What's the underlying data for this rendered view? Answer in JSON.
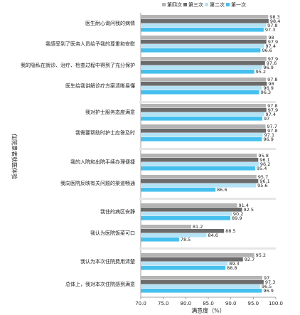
{
  "chart_data": {
    "type": "hbar",
    "ylabel": "住院患者就医体验",
    "xlabel": "满意度（%）",
    "categories": [
      "医生耐心询问我的病情",
      "我感受到了医务人员给予我的尊重和安慰",
      "我的隐私在就诊、治疗、检查过程中得到了充分保护",
      "医生给我讲解诊疗方案清晰易懂",
      "我对护士服务态度满意",
      "我需要帮助时护士应答及时",
      "我的入院和出院手续办理便捷",
      "我向医院反映有关问题的渠道畅通",
      "我住的病区安静",
      "我认为医院饭菜可口",
      "我认为本次住院费用清楚",
      "总体上，我对本次住院感到满意"
    ],
    "series": [
      {
        "name": "第四次",
        "color": "#b4b4b4",
        "values": [
          98.3,
          98.0,
          97.9,
          97.8,
          97.8,
          97.7,
          95.8,
          95.7,
          91.4,
          81.2,
          95.2,
          97.0
        ]
      },
      {
        "name": "第三次",
        "color": "#6b6b6b",
        "values": [
          98.4,
          97.9,
          97.6,
          98.0,
          97.9,
          97.8,
          96.1,
          96.1,
          92.5,
          88.5,
          92.7,
          97.3
        ]
      },
      {
        "name": "第二次",
        "color": "#b5e3f6",
        "values": [
          97.8,
          97.4,
          96.9,
          96.9,
          97.4,
          97.1,
          96.2,
          95.6,
          90.2,
          84.6,
          89.3,
          96.5
        ]
      },
      {
        "name": "第一次",
        "color": "#45c0ee",
        "values": [
          97.3,
          96.6,
          95.2,
          96.3,
          97.0,
          96.9,
          95.4,
          86.6,
          89.9,
          78.5,
          88.8,
          96.9
        ]
      }
    ],
    "xlim": [
      70,
      100
    ],
    "xticks": [
      {
        "value": 70,
        "label": "70.0"
      },
      {
        "value": 75,
        "label": "75.0"
      },
      {
        "value": 80,
        "label": "80.0"
      },
      {
        "value": 85,
        "label": "85.0"
      },
      {
        "value": 90,
        "label": "90.0"
      },
      {
        "value": 95,
        "label": "95.0"
      },
      {
        "value": 100,
        "label": "100.0"
      }
    ]
  }
}
